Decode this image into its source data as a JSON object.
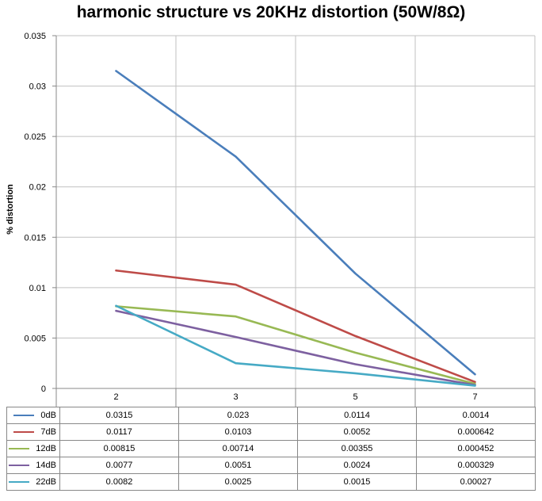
{
  "chart_data": {
    "type": "line",
    "title": "harmonic structure vs 20KHz distortion (50W/8Ω)",
    "ylabel": "% distortion",
    "xlabel": "",
    "categories": [
      "2",
      "3",
      "5",
      "7"
    ],
    "ylim": [
      0,
      0.035
    ],
    "yticks": [
      "0",
      "0.005",
      "0.01",
      "0.015",
      "0.02",
      "0.025",
      "0.03",
      "0.035"
    ],
    "grid": true,
    "legend": "data table",
    "series": [
      {
        "name": "0dB",
        "color": "#4a7ebb",
        "values": [
          0.0315,
          0.023,
          0.0114,
          0.0014
        ],
        "labels": [
          "0.0315",
          "0.023",
          "0.0114",
          "0.0014"
        ]
      },
      {
        "name": "7dB",
        "color": "#be4b48",
        "values": [
          0.0117,
          0.0103,
          0.0052,
          0.000642
        ],
        "labels": [
          "0.0117",
          "0.0103",
          "0.0052",
          "0.000642"
        ]
      },
      {
        "name": "12dB",
        "color": "#98b954",
        "values": [
          0.00815,
          0.00714,
          0.00355,
          0.000452
        ],
        "labels": [
          "0.00815",
          "0.00714",
          "0.00355",
          "0.000452"
        ]
      },
      {
        "name": "14dB",
        "color": "#7d60a0",
        "values": [
          0.0077,
          0.0051,
          0.0024,
          0.000329
        ],
        "labels": [
          "0.0077",
          "0.0051",
          "0.0024",
          "0.000329"
        ]
      },
      {
        "name": "22dB",
        "color": "#46aac5",
        "values": [
          0.0082,
          0.0025,
          0.0015,
          0.00027
        ],
        "labels": [
          "0.0082",
          "0.0025",
          "0.0015",
          "0.00027"
        ]
      }
    ]
  }
}
